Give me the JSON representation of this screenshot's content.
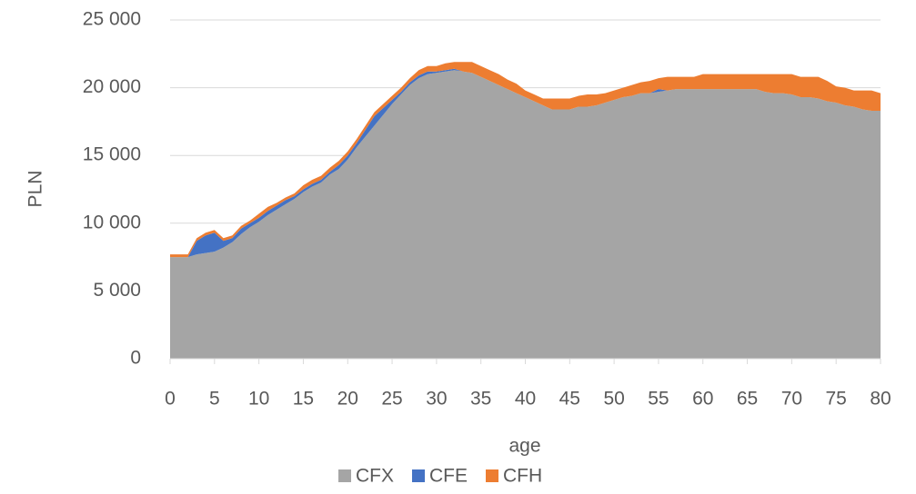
{
  "chart_data": {
    "type": "area",
    "stacked": true,
    "xlabel": "age",
    "ylabel": "PLN",
    "x": [
      0,
      1,
      2,
      3,
      4,
      5,
      6,
      7,
      8,
      9,
      10,
      11,
      12,
      13,
      14,
      15,
      16,
      17,
      18,
      19,
      20,
      21,
      22,
      23,
      24,
      25,
      26,
      27,
      28,
      29,
      30,
      31,
      32,
      33,
      34,
      35,
      36,
      37,
      38,
      39,
      40,
      41,
      42,
      43,
      44,
      45,
      46,
      47,
      48,
      49,
      50,
      51,
      52,
      53,
      54,
      55,
      56,
      57,
      58,
      59,
      60,
      61,
      62,
      63,
      64,
      65,
      66,
      67,
      68,
      69,
      70,
      71,
      72,
      73,
      74,
      75,
      76,
      77,
      78,
      79,
      80
    ],
    "series": [
      {
        "name": "CFX",
        "color": "#a5a5a5",
        "values": [
          7500,
          7500,
          7500,
          7700,
          7800,
          7900,
          8200,
          8600,
          9200,
          9700,
          10100,
          10600,
          11000,
          11400,
          11800,
          12300,
          12700,
          13000,
          13600,
          14000,
          14700,
          15600,
          16400,
          17200,
          18000,
          18800,
          19500,
          20200,
          20700,
          21000,
          21100,
          21200,
          21300,
          21200,
          21100,
          20800,
          20500,
          20200,
          19900,
          19600,
          19300,
          19000,
          18700,
          18400,
          18400,
          18400,
          18600,
          18600,
          18700,
          18900,
          19100,
          19300,
          19400,
          19600,
          19600,
          19700,
          19800,
          19900,
          19900,
          19900,
          19900,
          19900,
          19900,
          19900,
          19900,
          19900,
          19900,
          19700,
          19600,
          19600,
          19500,
          19300,
          19300,
          19200,
          19000,
          18900,
          18700,
          18600,
          18400,
          18300,
          18300
        ]
      },
      {
        "name": "CFE",
        "color": "#4472c4",
        "values": [
          0,
          0,
          0,
          1000,
          1300,
          1400,
          500,
          300,
          400,
          300,
          300,
          300,
          300,
          300,
          200,
          200,
          200,
          200,
          200,
          300,
          300,
          300,
          500,
          700,
          500,
          300,
          200,
          200,
          200,
          200,
          100,
          100,
          100,
          0,
          0,
          0,
          0,
          0,
          0,
          0,
          0,
          0,
          0,
          0,
          0,
          0,
          0,
          0,
          0,
          0,
          0,
          0,
          0,
          0,
          0,
          200,
          0,
          0,
          0,
          0,
          0,
          0,
          0,
          0,
          0,
          0,
          0,
          0,
          0,
          0,
          0,
          0,
          0,
          0,
          0,
          0,
          0,
          0,
          0,
          0,
          0
        ]
      },
      {
        "name": "CFH",
        "color": "#ed7d31",
        "values": [
          200,
          200,
          200,
          200,
          200,
          200,
          200,
          200,
          200,
          200,
          300,
          300,
          200,
          200,
          200,
          300,
          300,
          300,
          300,
          300,
          300,
          300,
          300,
          300,
          300,
          300,
          300,
          300,
          400,
          400,
          400,
          500,
          500,
          700,
          800,
          800,
          800,
          800,
          700,
          700,
          500,
          500,
          500,
          800,
          800,
          800,
          800,
          900,
          800,
          700,
          700,
          700,
          800,
          800,
          900,
          800,
          1000,
          900,
          900,
          900,
          1100,
          1100,
          1100,
          1100,
          1100,
          1100,
          1100,
          1300,
          1400,
          1400,
          1500,
          1500,
          1500,
          1600,
          1500,
          1200,
          1300,
          1200,
          1400,
          1500,
          1300
        ]
      }
    ],
    "xlim": [
      0,
      80
    ],
    "xticks": [
      0,
      5,
      10,
      15,
      20,
      25,
      30,
      35,
      40,
      45,
      50,
      55,
      60,
      65,
      70,
      75,
      80
    ],
    "ylim": [
      0,
      25000
    ],
    "yticks": [
      0,
      {
        "value": 5000,
        "label": "5 000"
      },
      {
        "value": 10000,
        "label": "10 000"
      },
      {
        "value": 15000,
        "label": "15 000"
      },
      {
        "value": 20000,
        "label": "20 000"
      },
      {
        "value": 25000,
        "label": "25 000"
      }
    ],
    "grid": true,
    "legend": "bottom"
  }
}
